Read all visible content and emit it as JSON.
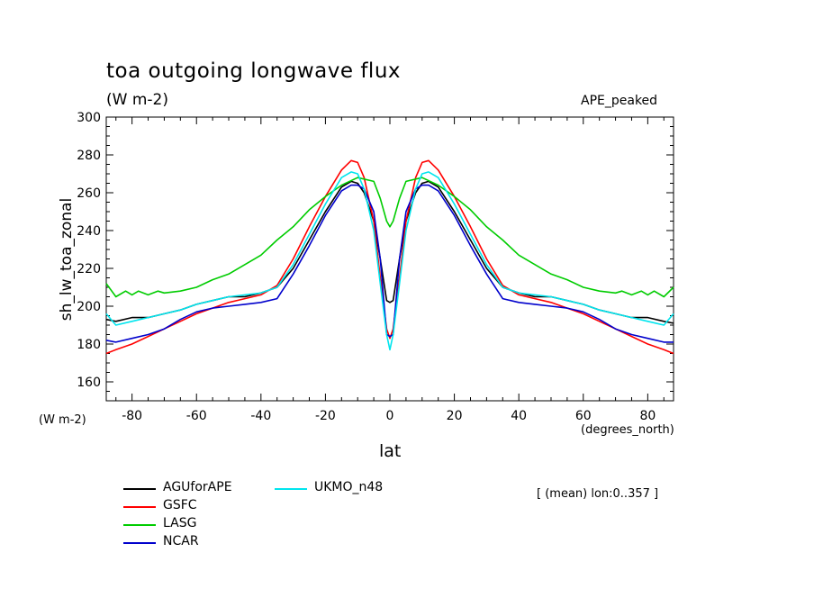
{
  "header": {
    "title": "toa outgoing longwave flux",
    "units": "(W m-2)",
    "tag": "APE_peaked"
  },
  "axes": {
    "ylabel": "sh_lw_toa_zonal",
    "xlabel": "lat",
    "y_units": "(W m-2)",
    "x_units": "(degrees_north)"
  },
  "note": "[ (mean) lon:0..357 ]",
  "chart_data": {
    "type": "line",
    "title": "toa outgoing longwave flux",
    "xlabel": "lat",
    "ylabel": "sh_lw_toa_zonal",
    "xlim": [
      -88,
      88
    ],
    "ylim": [
      150,
      300
    ],
    "xticks": [
      -80,
      -60,
      -40,
      -20,
      0,
      20,
      40,
      60,
      80
    ],
    "yticks": [
      160,
      180,
      200,
      220,
      240,
      260,
      280,
      300
    ],
    "grid": false,
    "legend_position": "bottom-left",
    "series": [
      {
        "name": "AGUforAPE",
        "color": "#000000",
        "x": [
          -88,
          -85,
          -80,
          -75,
          -70,
          -65,
          -60,
          -55,
          -50,
          -45,
          -40,
          -35,
          -30,
          -25,
          -20,
          -15,
          -12,
          -10,
          -8,
          -5,
          -3,
          -1,
          0,
          1,
          3,
          5,
          8,
          10,
          12,
          15,
          20,
          25,
          30,
          35,
          40,
          45,
          50,
          55,
          60,
          65,
          70,
          75,
          80,
          85,
          88
        ],
        "y": [
          193,
          192,
          194,
          194,
          196,
          198,
          201,
          203,
          205,
          205,
          207,
          210,
          220,
          235,
          250,
          263,
          266,
          265,
          260,
          245,
          225,
          203,
          202,
          203,
          225,
          245,
          260,
          265,
          266,
          263,
          250,
          235,
          220,
          210,
          207,
          205,
          205,
          203,
          201,
          198,
          196,
          194,
          194,
          192,
          191
        ]
      },
      {
        "name": "GSFC",
        "color": "#ff0000",
        "x": [
          -88,
          -85,
          -80,
          -75,
          -70,
          -65,
          -60,
          -55,
          -50,
          -45,
          -40,
          -35,
          -30,
          -25,
          -20,
          -15,
          -12,
          -10,
          -8,
          -5,
          -3,
          -1,
          0,
          1,
          3,
          5,
          8,
          10,
          12,
          15,
          20,
          25,
          30,
          35,
          40,
          45,
          50,
          55,
          60,
          65,
          70,
          75,
          80,
          85,
          88
        ],
        "y": [
          175,
          177,
          180,
          184,
          188,
          192,
          196,
          199,
          202,
          204,
          206,
          211,
          225,
          242,
          258,
          272,
          277,
          276,
          268,
          245,
          215,
          188,
          183,
          188,
          215,
          245,
          268,
          276,
          277,
          272,
          258,
          242,
          225,
          211,
          206,
          204,
          202,
          199,
          196,
          192,
          188,
          184,
          180,
          177,
          175
        ]
      },
      {
        "name": "LASG",
        "color": "#00cc00",
        "x": [
          -88,
          -85,
          -82,
          -80,
          -78,
          -75,
          -72,
          -70,
          -65,
          -60,
          -55,
          -50,
          -45,
          -40,
          -35,
          -30,
          -25,
          -20,
          -15,
          -10,
          -5,
          -3,
          -1,
          0,
          1,
          3,
          5,
          10,
          15,
          20,
          25,
          30,
          35,
          40,
          45,
          50,
          55,
          60,
          65,
          70,
          72,
          75,
          78,
          80,
          82,
          85,
          88
        ],
        "y": [
          212,
          205,
          208,
          206,
          208,
          206,
          208,
          207,
          208,
          210,
          214,
          217,
          222,
          227,
          235,
          242,
          251,
          258,
          264,
          268,
          266,
          257,
          245,
          242,
          245,
          257,
          266,
          268,
          264,
          258,
          251,
          242,
          235,
          227,
          222,
          217,
          214,
          210,
          208,
          207,
          208,
          206,
          208,
          206,
          208,
          205,
          210
        ]
      },
      {
        "name": "NCAR",
        "color": "#0000cc",
        "x": [
          -88,
          -85,
          -80,
          -75,
          -70,
          -65,
          -60,
          -55,
          -50,
          -45,
          -40,
          -35,
          -30,
          -25,
          -20,
          -15,
          -12,
          -10,
          -8,
          -5,
          -3,
          -1,
          0,
          1,
          3,
          5,
          8,
          10,
          12,
          15,
          20,
          25,
          30,
          35,
          40,
          45,
          50,
          55,
          60,
          65,
          70,
          75,
          80,
          85,
          88
        ],
        "y": [
          182,
          181,
          183,
          185,
          188,
          193,
          197,
          199,
          200,
          201,
          202,
          204,
          217,
          232,
          248,
          261,
          264,
          264,
          262,
          250,
          225,
          185,
          184,
          185,
          225,
          250,
          262,
          264,
          264,
          261,
          248,
          232,
          217,
          204,
          202,
          201,
          200,
          199,
          197,
          193,
          188,
          185,
          183,
          181,
          181
        ]
      },
      {
        "name": "UKMO_n48",
        "color": "#00e5ee",
        "x": [
          -88,
          -85,
          -80,
          -75,
          -70,
          -65,
          -60,
          -55,
          -50,
          -45,
          -40,
          -35,
          -30,
          -25,
          -20,
          -15,
          -12,
          -10,
          -8,
          -5,
          -3,
          -1,
          0,
          1,
          3,
          5,
          8,
          10,
          12,
          15,
          20,
          25,
          30,
          35,
          40,
          45,
          50,
          55,
          60,
          65,
          70,
          75,
          80,
          85,
          88
        ],
        "y": [
          196,
          190,
          192,
          194,
          196,
          198,
          201,
          203,
          205,
          206,
          207,
          210,
          222,
          238,
          254,
          268,
          271,
          270,
          262,
          240,
          212,
          185,
          177,
          185,
          212,
          240,
          262,
          270,
          271,
          268,
          254,
          238,
          222,
          210,
          207,
          206,
          205,
          203,
          201,
          198,
          196,
          194,
          192,
          190,
          196
        ]
      }
    ]
  }
}
